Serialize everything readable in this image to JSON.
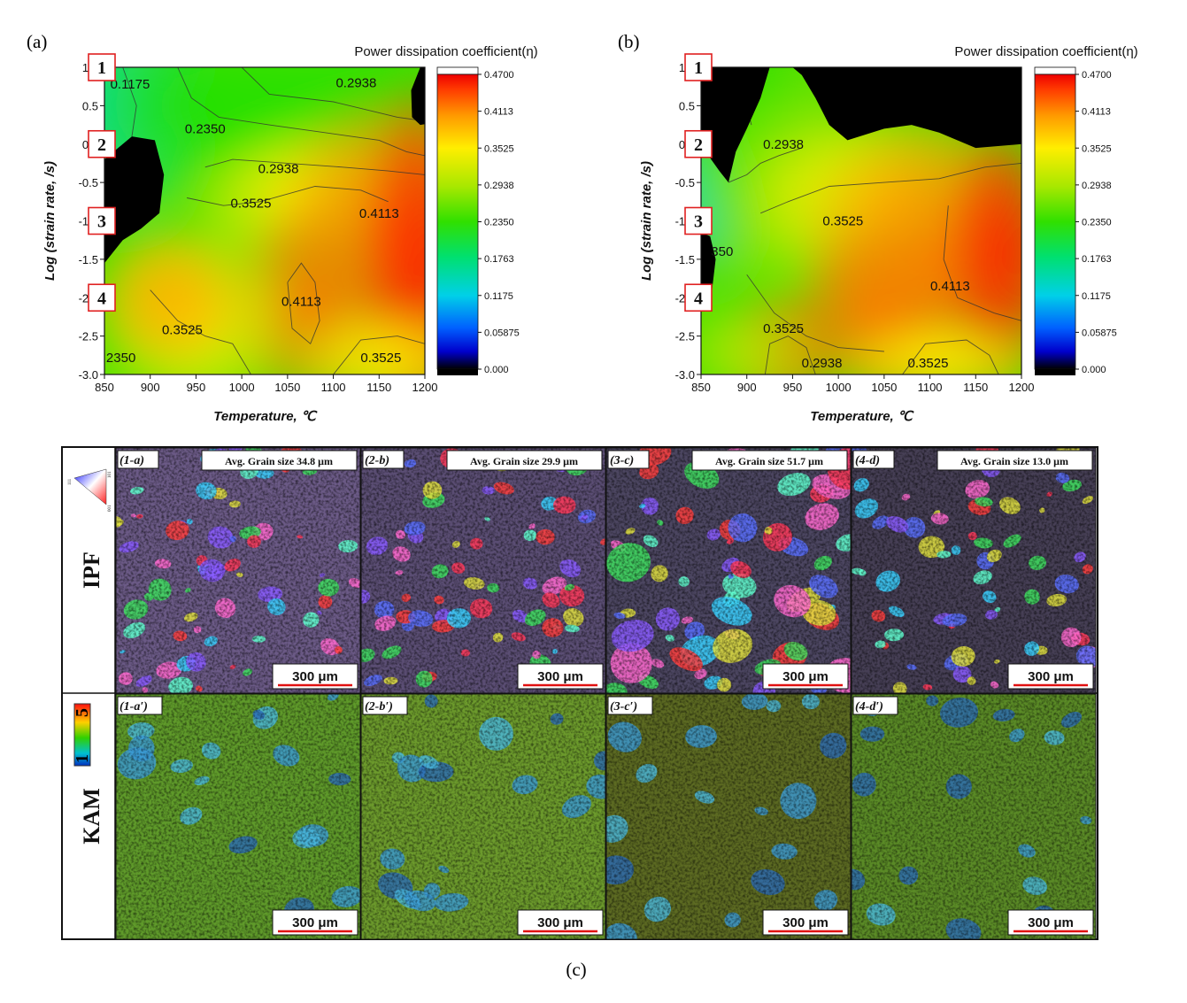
{
  "figure_c_label": "(c)",
  "chart_data": [
    {
      "type": "heatmap",
      "panel_label": "(a)",
      "title": "Power dissipation coefficient(η)",
      "xlabel": "Temperature, ℃",
      "ylabel": "Log (strain rate, /s)",
      "xlim": [
        850,
        1200
      ],
      "ylim": [
        -3.0,
        1.0
      ],
      "x_ticks": [
        "850",
        "900",
        "950",
        "1000",
        "1050",
        "1100",
        "1150",
        "1200"
      ],
      "y_ticks": [
        "1.0",
        "0.5",
        "0.0",
        "-0.5",
        "-1.0",
        "-1.5",
        "-2.0",
        "-2.5",
        "-3.0"
      ],
      "colorbar_ticks": [
        "0.4700",
        "0.4113",
        "0.3525",
        "0.2938",
        "0.2350",
        "0.1763",
        "0.1175",
        "0.05875",
        "0.000"
      ],
      "colorbar_range": [
        0.0,
        0.47
      ],
      "instability_color": "#000000",
      "contour_labels": [
        {
          "text": "0.1175",
          "x": 878,
          "y": 0.78
        },
        {
          "text": "0.2938",
          "x": 1125,
          "y": 0.8
        },
        {
          "text": "0.2350",
          "x": 960,
          "y": 0.2
        },
        {
          "text": "0.2938",
          "x": 1040,
          "y": -0.32
        },
        {
          "text": "0.3525",
          "x": 1010,
          "y": -0.77
        },
        {
          "text": "0.4113",
          "x": 1150,
          "y": -0.9
        },
        {
          "text": "0.4113",
          "x": 1065,
          "y": -2.05
        },
        {
          "text": "0.3525",
          "x": 935,
          "y": -2.42
        },
        {
          "text": "0.3525",
          "x": 1152,
          "y": -2.78
        },
        {
          "text": "2350",
          "x": 868,
          "y": -2.78
        }
      ],
      "points": [
        {
          "label": "1",
          "y": 1.0
        },
        {
          "label": "2",
          "y": 0.0
        },
        {
          "label": "3",
          "y": -1.0
        },
        {
          "label": "4",
          "y": -2.0
        }
      ]
    },
    {
      "type": "heatmap",
      "panel_label": "(b)",
      "title": "Power dissipation coefficient(η)",
      "xlabel": "Temperature, ℃",
      "ylabel": "Log (strain rate, /s)",
      "xlim": [
        850,
        1200
      ],
      "ylim": [
        -3.0,
        1.0
      ],
      "x_ticks": [
        "850",
        "900",
        "950",
        "1000",
        "1050",
        "1100",
        "1150",
        "1200"
      ],
      "y_ticks": [
        "1.0",
        "0.5",
        "0.0",
        "-0.5",
        "-1.0",
        "-1.5",
        "-2.0",
        "-2.5",
        "-3.0"
      ],
      "colorbar_ticks": [
        "0.4700",
        "0.4113",
        "0.3525",
        "0.2938",
        "0.2350",
        "0.1763",
        "0.1175",
        "0.05875",
        "0.000"
      ],
      "colorbar_range": [
        0.0,
        0.47
      ],
      "instability_color": "#000000",
      "contour_labels": [
        {
          "text": "0.2938",
          "x": 940,
          "y": 0.0
        },
        {
          "text": "0.3525",
          "x": 1005,
          "y": -1.0
        },
        {
          "text": "0.4113",
          "x": 1122,
          "y": -1.85
        },
        {
          "text": "350",
          "x": 873,
          "y": -1.4
        },
        {
          "text": "0.3525",
          "x": 940,
          "y": -2.4
        },
        {
          "text": "0.2938",
          "x": 982,
          "y": -2.85
        },
        {
          "text": "0.3525",
          "x": 1098,
          "y": -2.85
        }
      ],
      "points": [
        {
          "label": "1",
          "y": 1.0
        },
        {
          "label": "2",
          "y": 0.0
        },
        {
          "label": "3",
          "y": -1.0
        },
        {
          "label": "4",
          "y": -2.0
        }
      ]
    }
  ],
  "micrographs": {
    "row_labels": [
      "IPF",
      "KAM"
    ],
    "kam_scale_labels": [
      "5",
      "1"
    ],
    "ipf_key_labels": [
      "111",
      "101",
      "001"
    ],
    "scale_bar": "300 μm",
    "ipf": [
      {
        "label": "(1-a)",
        "grain": "Avg. Grain  size 34.8 μm",
        "base": "#6b5a86"
      },
      {
        "label": "(2-b)",
        "grain": "Avg. Grain  size 29.9 μm",
        "base": "#5b4e74"
      },
      {
        "label": "(3-c)",
        "grain": "Avg. Grain  size 51.7 μm",
        "base": "#4c4661"
      },
      {
        "label": "(4-d)",
        "grain": "Avg. Grain  size 13.0 μm",
        "base": "#463f55"
      }
    ],
    "kam": [
      {
        "label": "(1-a′)",
        "base": "#5f9a2a"
      },
      {
        "label": "(2-b′)",
        "base": "#6c9a2c"
      },
      {
        "label": "(3-c′)",
        "base": "#5c6a22"
      },
      {
        "label": "(4-d′)",
        "base": "#5a8a26"
      }
    ]
  }
}
